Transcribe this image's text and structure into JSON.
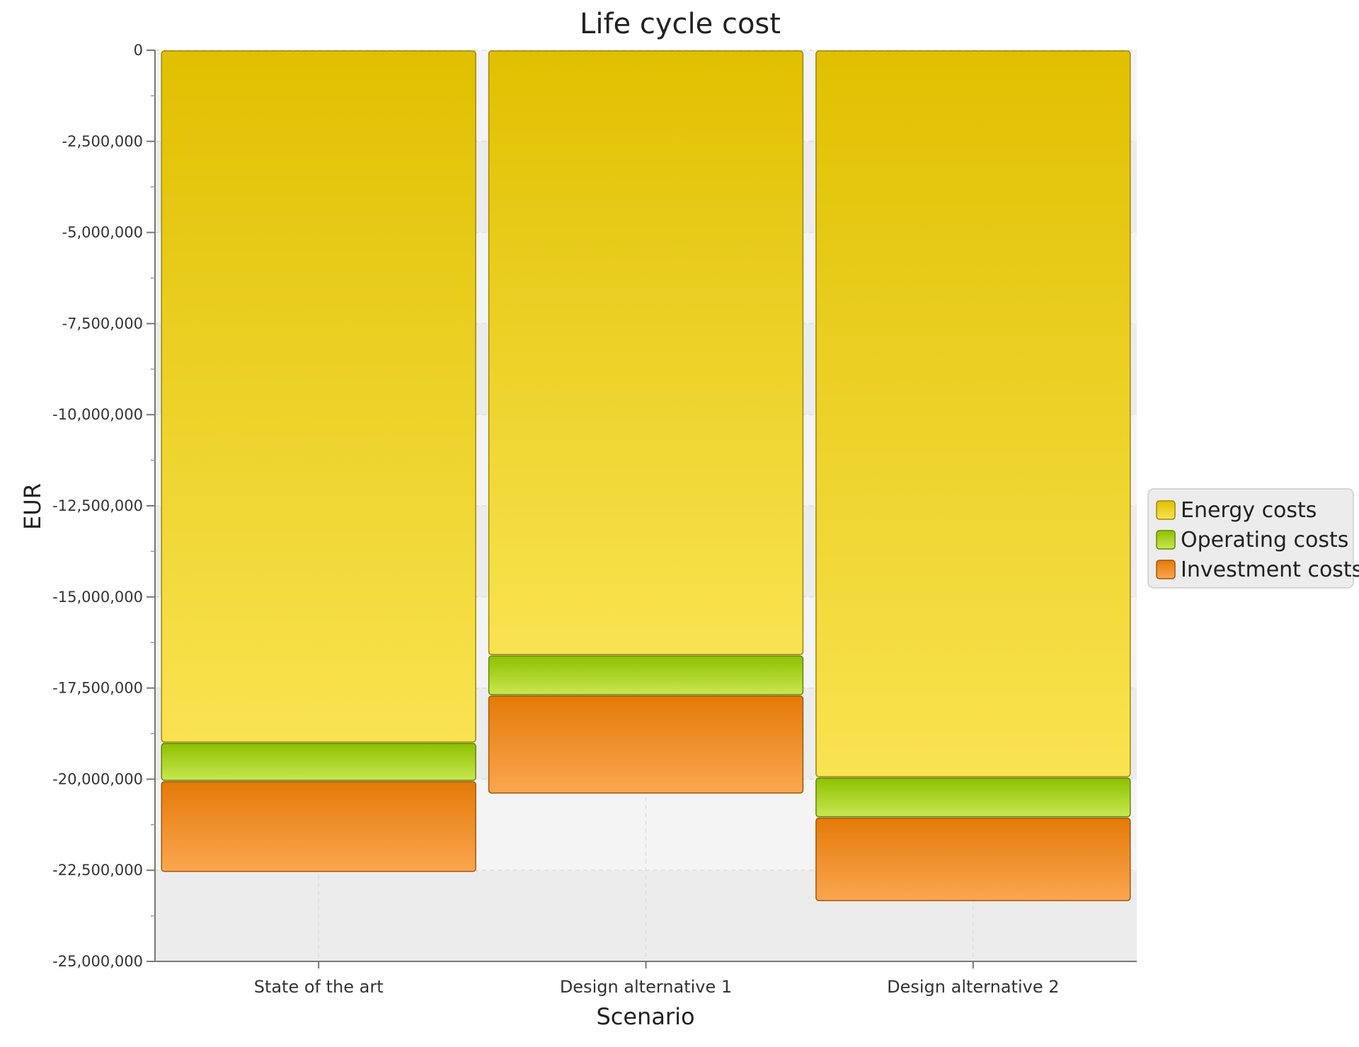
{
  "chart_data": {
    "type": "bar",
    "stacked": true,
    "title": "Life cycle cost",
    "xlabel": "Scenario",
    "ylabel": "EUR",
    "ylim": [
      -25000000,
      0
    ],
    "yticks": [
      0,
      -2500000,
      -5000000,
      -7500000,
      -10000000,
      -12500000,
      -15000000,
      -17500000,
      -20000000,
      -22500000,
      -25000000
    ],
    "ytick_labels": [
      "0",
      "-2,500,000",
      "-5,000,000",
      "-7,500,000",
      "-10,000,000",
      "-12,500,000",
      "-15,000,000",
      "-17,500,000",
      "-20,000,000",
      "-22,500,000",
      "-25,000,000"
    ],
    "categories": [
      "State of the art",
      "Design alternative 1",
      "Design alternative 2"
    ],
    "series": [
      {
        "name": "Energy costs",
        "values": [
          -19000000,
          -16600000,
          -19950000
        ]
      },
      {
        "name": "Operating costs",
        "values": [
          -1050000,
          -1100000,
          -1100000
        ]
      },
      {
        "name": "Investment costs",
        "values": [
          -2500000,
          -2700000,
          -2300000
        ]
      }
    ],
    "colors": {
      "Energy costs": [
        "#E0C000",
        "#F9E350"
      ],
      "Operating costs": [
        "#8EC000",
        "#C8E850"
      ],
      "Investment costs": [
        "#E47A08",
        "#FBA650"
      ]
    },
    "grid": true,
    "legend_position": "right"
  }
}
